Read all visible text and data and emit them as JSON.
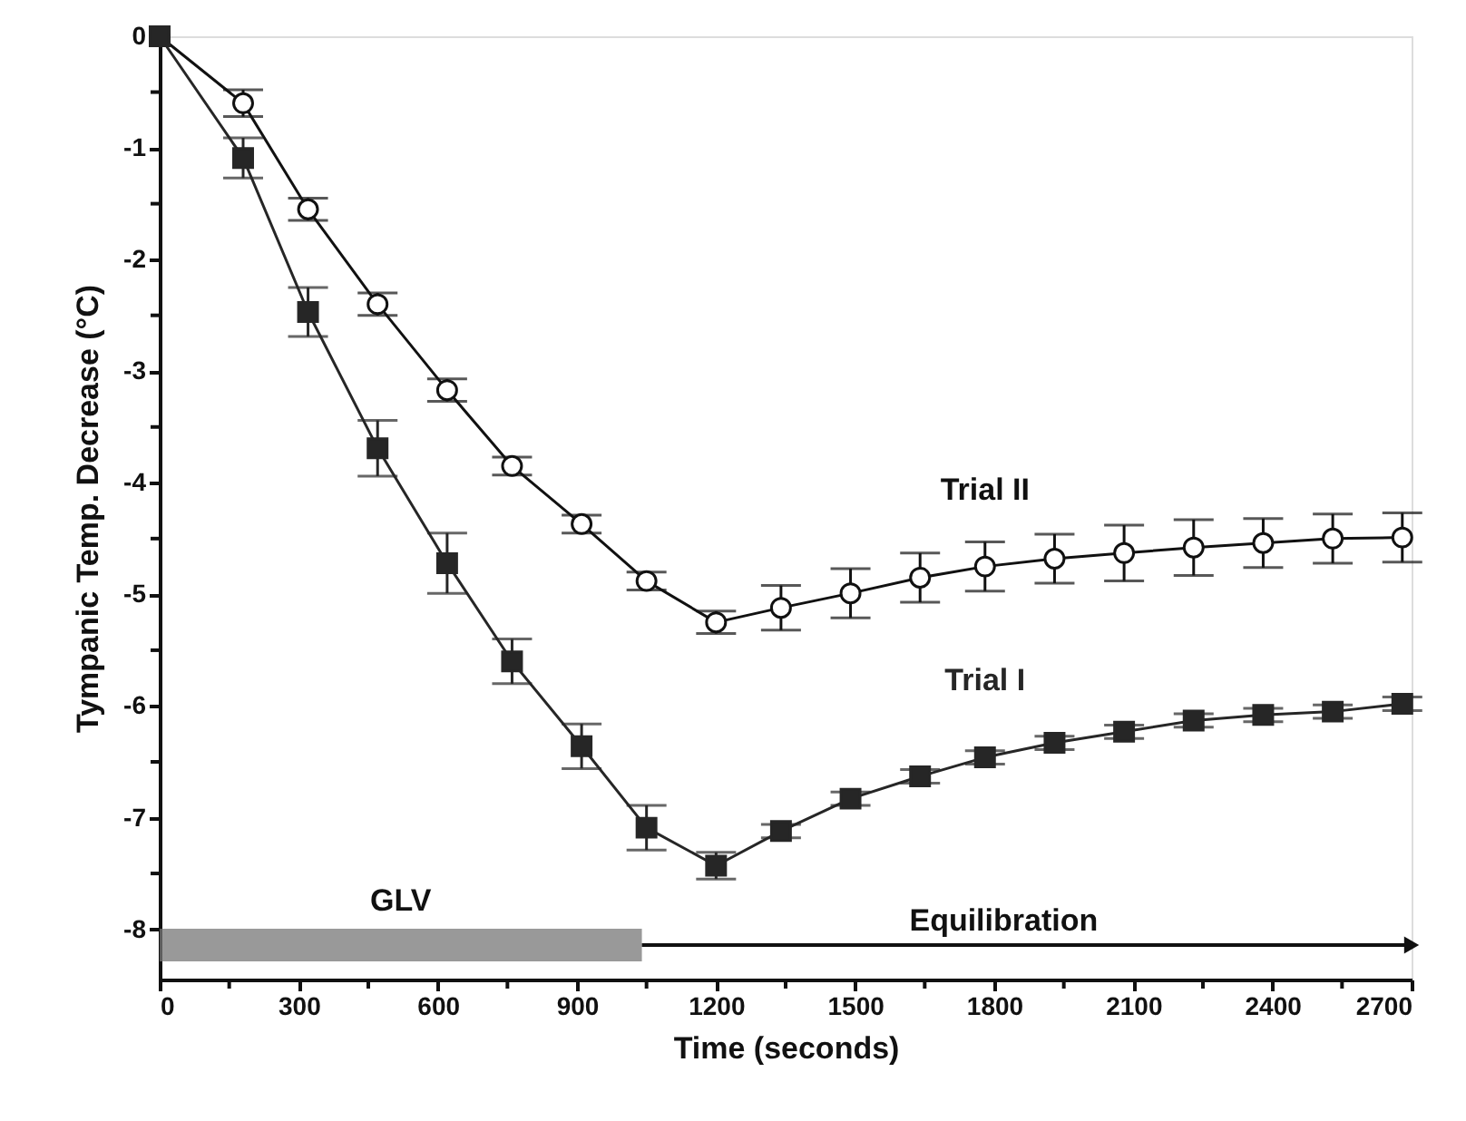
{
  "chart_data": {
    "type": "line",
    "xlabel": "Time (seconds)",
    "ylabel": "Tympanic Temp. Decrease (°C)",
    "x": [
      0,
      180,
      320,
      470,
      620,
      760,
      910,
      1050,
      1200,
      1340,
      1490,
      1640,
      1780,
      1930,
      2080,
      2230,
      2380,
      2530,
      2680
    ],
    "series": [
      {
        "name": "Trial II",
        "color": "#111111",
        "marker": "circle",
        "values": [
          0,
          -0.6,
          -1.55,
          -2.4,
          -3.17,
          -3.85,
          -4.37,
          -4.88,
          -5.25,
          -5.12,
          -4.99,
          -4.85,
          -4.75,
          -4.68,
          -4.63,
          -4.58,
          -4.54,
          -4.5,
          -4.49
        ],
        "errors": [
          null,
          0.12,
          0.1,
          0.1,
          0.1,
          0.08,
          0.08,
          0.08,
          0.1,
          0.2,
          0.22,
          0.22,
          0.22,
          0.22,
          0.25,
          0.25,
          0.22,
          0.22,
          0.22
        ]
      },
      {
        "name": "Trial I",
        "color": "#262626",
        "marker": "square",
        "values": [
          0,
          -1.09,
          -2.47,
          -3.69,
          -4.72,
          -5.6,
          -6.36,
          -7.09,
          -7.43,
          -7.12,
          -6.83,
          -6.63,
          -6.46,
          -6.33,
          -6.23,
          -6.13,
          -6.08,
          -6.05,
          -5.98
        ],
        "errors": [
          null,
          0.18,
          0.22,
          0.25,
          0.27,
          0.2,
          0.2,
          0.2,
          0.12,
          0.06,
          0.06,
          0.06,
          0.06,
          0.06,
          0.06,
          0.06,
          0.06,
          0.06,
          0.06
        ]
      }
    ],
    "bands": [
      {
        "axis": "x",
        "from": 0,
        "to": 1040,
        "label": "GLV",
        "color": "#777777"
      },
      {
        "axis": "x",
        "from": 1040,
        "to": 2700,
        "label": "Equilibration"
      }
    ],
    "xlim": [
      0,
      2700
    ],
    "ylim": [
      -8.45,
      0
    ],
    "xticks": [
      0,
      {
        "value": 150,
        "label": null
      },
      300,
      {
        "value": 450,
        "label": null
      },
      600,
      {
        "value": 750,
        "label": null
      },
      900,
      {
        "value": 1050,
        "label": null
      },
      1200,
      {
        "value": 1350,
        "label": null
      },
      1500,
      {
        "value": 1650,
        "label": null
      },
      1800,
      {
        "value": 1950,
        "label": null
      },
      2100,
      {
        "value": 2250,
        "label": null
      },
      2400,
      {
        "value": 2550,
        "label": null
      },
      2700
    ],
    "yticks": [
      0,
      {
        "value": -0.5,
        "label": null
      },
      -1,
      {
        "value": -1.5,
        "label": null
      },
      -2,
      {
        "value": -2.5,
        "label": null
      },
      -3,
      {
        "value": -3.5,
        "label": null
      },
      -4,
      {
        "value": -4.5,
        "label": null
      },
      -5,
      {
        "value": -5.5,
        "label": null
      },
      -6,
      {
        "value": -6.5,
        "label": null
      },
      -7,
      {
        "value": -7.5,
        "label": null
      },
      -8
    ],
    "grid": false,
    "legend": false,
    "line_style": "solid"
  }
}
